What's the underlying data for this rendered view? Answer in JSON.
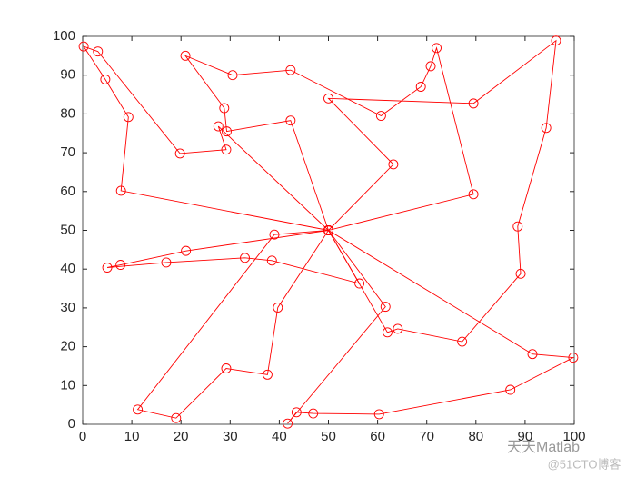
{
  "chart_data": {
    "type": "line",
    "xlim": [
      0,
      100
    ],
    "ylim": [
      0,
      100
    ],
    "xticks": [
      0,
      10,
      20,
      30,
      40,
      50,
      60,
      70,
      80,
      90,
      100
    ],
    "yticks": [
      0,
      10,
      20,
      30,
      40,
      50,
      60,
      70,
      80,
      90,
      100
    ],
    "marker": "circle",
    "series": [
      {
        "color": "#ff0000",
        "x": [
          50,
          79.5,
          72,
          70.8,
          68.8,
          60.7,
          42.3,
          30.5,
          20.9,
          28.8,
          29.3,
          42.3,
          50
        ],
        "values": [
          50,
          59.3,
          97,
          92.3,
          87,
          79.5,
          91.3,
          90,
          95,
          81.5,
          75.5,
          78.3,
          50
        ]
      },
      {
        "color": "#ff0000",
        "x": [
          50,
          7.8,
          9.3,
          4.6,
          0.2,
          3.1,
          19.8,
          29.2,
          27.6,
          50
        ],
        "values": [
          50,
          60.2,
          79.2,
          88.9,
          97.4,
          96.1,
          69.8,
          70.8,
          76.8,
          50
        ]
      },
      {
        "color": "#ff0000",
        "x": [
          50,
          63.2,
          50,
          79.5,
          96.3,
          94.3,
          88.5,
          89.1,
          77.2,
          64.1,
          62,
          50
        ],
        "values": [
          50,
          67,
          84,
          82.7,
          98.9,
          76.4,
          51,
          38.8,
          21.3,
          24.6,
          23.7,
          50
        ]
      },
      {
        "color": "#ff0000",
        "x": [
          50,
          91.5,
          99.8,
          87,
          60.3,
          46.9,
          43.5,
          41.7,
          61.6,
          50
        ],
        "values": [
          50,
          18.1,
          17.2,
          8.9,
          2.6,
          2.8,
          3.1,
          0.2,
          30.3,
          50
        ]
      },
      {
        "color": "#ff0000",
        "x": [
          50,
          39.7,
          37.6,
          29.2,
          19,
          11.2,
          39,
          50
        ],
        "values": [
          50,
          30.1,
          12.8,
          14.4,
          1.6,
          3.8,
          48.9,
          50
        ]
      },
      {
        "color": "#ff0000",
        "x": [
          50,
          21,
          7.7,
          5,
          17,
          33,
          38.5,
          56.3,
          50
        ],
        "values": [
          50,
          44.7,
          41.1,
          40.4,
          41.7,
          42.9,
          42.2,
          36.3,
          50
        ]
      }
    ]
  },
  "watermark": {
    "name": "天天Matlab",
    "site": "@51CTO博客"
  }
}
